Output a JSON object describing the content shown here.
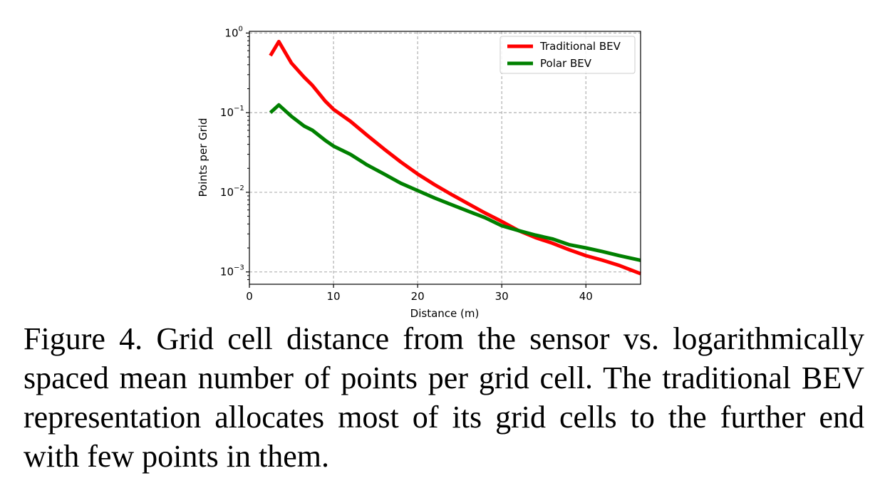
{
  "chart_data": {
    "type": "line",
    "xlabel": "Distance (m)",
    "ylabel": "Points per Grid",
    "xlim": [
      0,
      46.5
    ],
    "ylim": [
      0.0007,
      1.05
    ],
    "yscale": "log",
    "x_ticks": [
      0,
      10,
      20,
      30,
      40
    ],
    "y_ticks": [
      {
        "value": 1,
        "base": "10",
        "exp": "0"
      },
      {
        "value": 0.1,
        "base": "10",
        "exp": "−1"
      },
      {
        "value": 0.01,
        "base": "10",
        "exp": "−2"
      },
      {
        "value": 0.001,
        "base": "10",
        "exp": "−3"
      }
    ],
    "grid": true,
    "legend_position": "top-right",
    "series": [
      {
        "name": "Traditional BEV",
        "color": "#ff0000",
        "x": [
          2.5,
          3.5,
          5,
          6.5,
          7.5,
          9,
          10,
          12,
          14,
          16,
          18,
          20,
          22,
          24,
          26,
          28,
          30,
          32,
          34,
          36,
          38,
          40,
          42,
          44,
          46.5
        ],
        "y": [
          0.52,
          0.78,
          0.42,
          0.28,
          0.22,
          0.14,
          0.11,
          0.078,
          0.052,
          0.035,
          0.024,
          0.017,
          0.0125,
          0.0094,
          0.0072,
          0.0055,
          0.0043,
          0.0033,
          0.0027,
          0.0023,
          0.0019,
          0.0016,
          0.0014,
          0.0012,
          0.00095
        ]
      },
      {
        "name": "Polar BEV",
        "color": "#008000",
        "x": [
          2.5,
          3.5,
          5,
          6.5,
          7.5,
          9,
          10,
          12,
          14,
          16,
          18,
          20,
          22,
          24,
          26,
          28,
          30,
          32,
          34,
          36,
          38,
          40,
          42,
          44,
          46.5
        ],
        "y": [
          0.1,
          0.125,
          0.09,
          0.068,
          0.06,
          0.045,
          0.038,
          0.03,
          0.022,
          0.017,
          0.013,
          0.0105,
          0.0085,
          0.007,
          0.0058,
          0.0048,
          0.0038,
          0.0033,
          0.0029,
          0.0026,
          0.0022,
          0.002,
          0.0018,
          0.0016,
          0.0014
        ]
      }
    ]
  },
  "caption": "Figure 4. Grid cell distance from the sensor vs. logarithmically spaced mean number of points per grid cell. The traditional BEV representation allocates most of its grid cells to the further end with few points in them."
}
